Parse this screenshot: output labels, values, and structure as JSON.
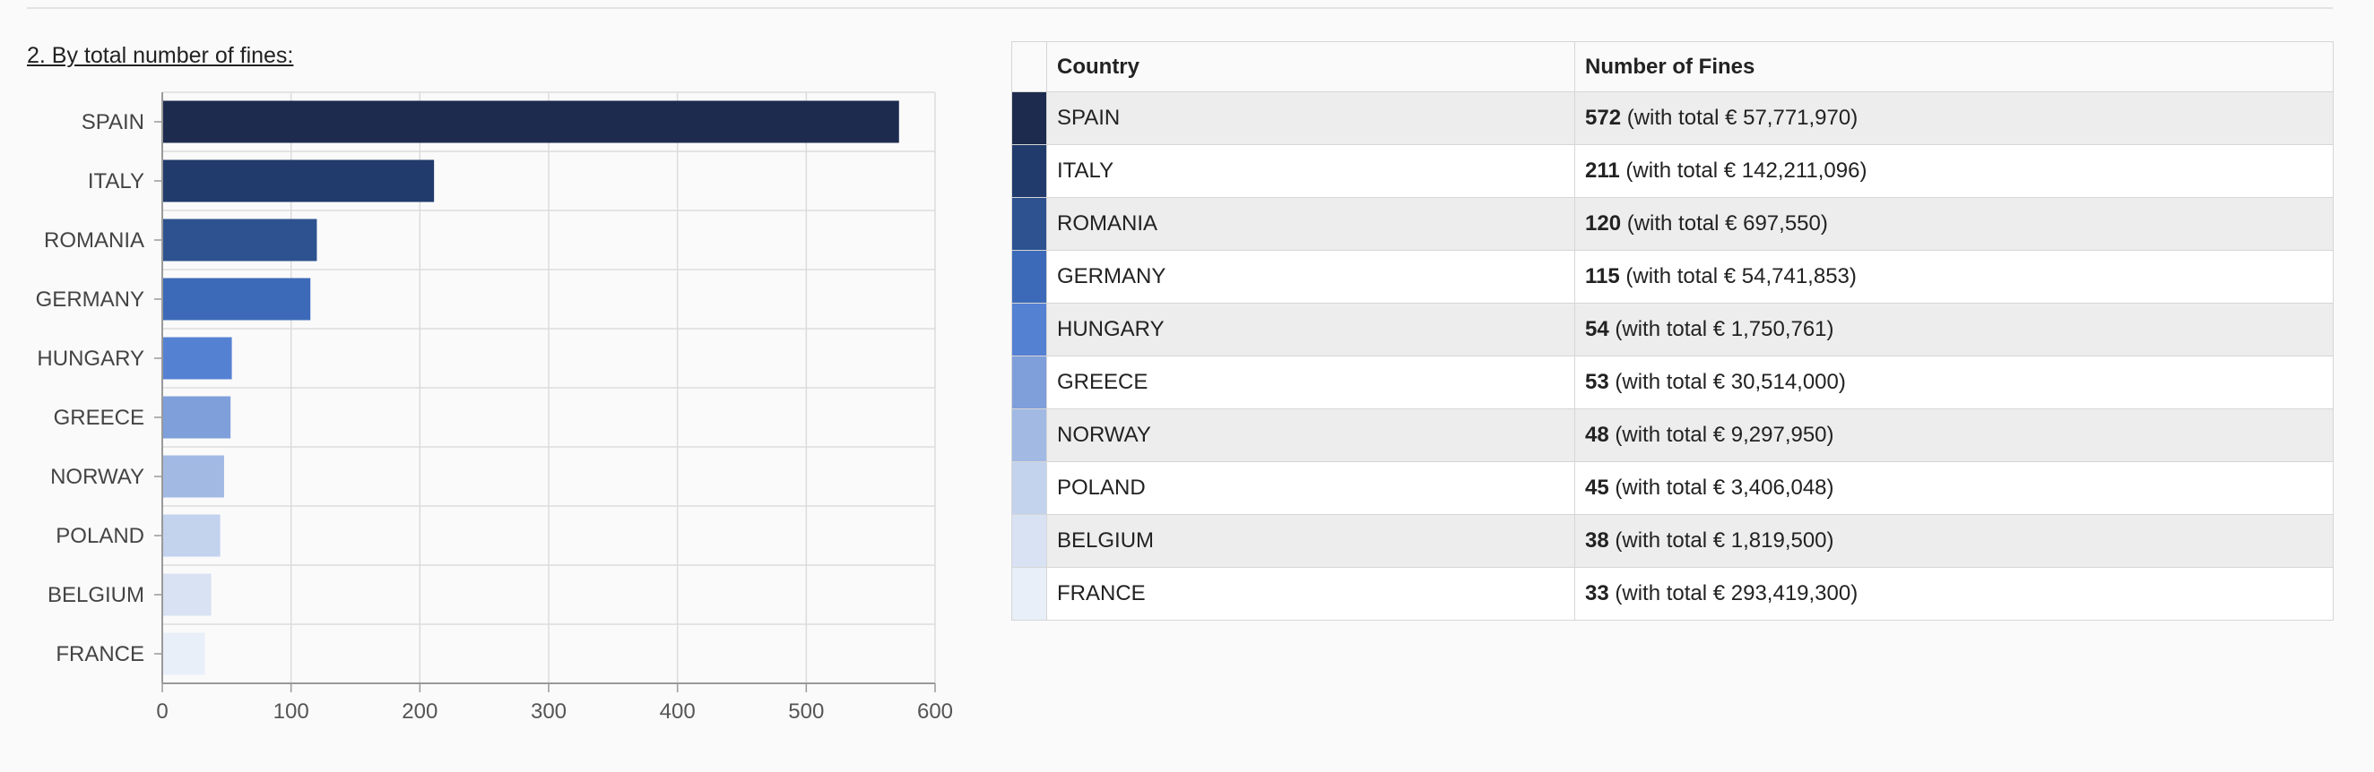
{
  "section_title": "2. By total number of fines:",
  "chart_data": {
    "type": "bar",
    "orientation": "horizontal",
    "categories": [
      "SPAIN",
      "ITALY",
      "ROMANIA",
      "GERMANY",
      "HUNGARY",
      "GREECE",
      "NORWAY",
      "POLAND",
      "BELGIUM",
      "FRANCE"
    ],
    "values": [
      572,
      211,
      120,
      115,
      54,
      53,
      48,
      45,
      38,
      33
    ],
    "colors": [
      "#1c2b4e",
      "#213b6c",
      "#2e5290",
      "#3c6ab8",
      "#5581d3",
      "#7f9fdb",
      "#a2b9e4",
      "#c3d3ee",
      "#d9e2f3",
      "#e9eff8"
    ],
    "xlim": [
      0,
      600
    ],
    "xticks": [
      0,
      100,
      200,
      300,
      400,
      500,
      600
    ],
    "grid": true,
    "title": "",
    "xlabel": "",
    "ylabel": ""
  },
  "table": {
    "headers": [
      "Country",
      "Number of Fines"
    ],
    "rows": [
      {
        "country": "SPAIN",
        "count": "572",
        "detail": " (with total € 57,771,970)"
      },
      {
        "country": "ITALY",
        "count": "211",
        "detail": " (with total € 142,211,096)"
      },
      {
        "country": "ROMANIA",
        "count": "120",
        "detail": " (with total € 697,550)"
      },
      {
        "country": "GERMANY",
        "count": "115",
        "detail": " (with total € 54,741,853)"
      },
      {
        "country": "HUNGARY",
        "count": "54",
        "detail": " (with total € 1,750,761)"
      },
      {
        "country": "GREECE",
        "count": "53",
        "detail": " (with total € 30,514,000)"
      },
      {
        "country": "NORWAY",
        "count": "48",
        "detail": " (with total € 9,297,950)"
      },
      {
        "country": "POLAND",
        "count": "45",
        "detail": " (with total € 3,406,048)"
      },
      {
        "country": "BELGIUM",
        "count": "38",
        "detail": " (with total € 1,819,500)"
      },
      {
        "country": "FRANCE",
        "count": "33",
        "detail": " (with total € 293,419,300)"
      }
    ]
  }
}
